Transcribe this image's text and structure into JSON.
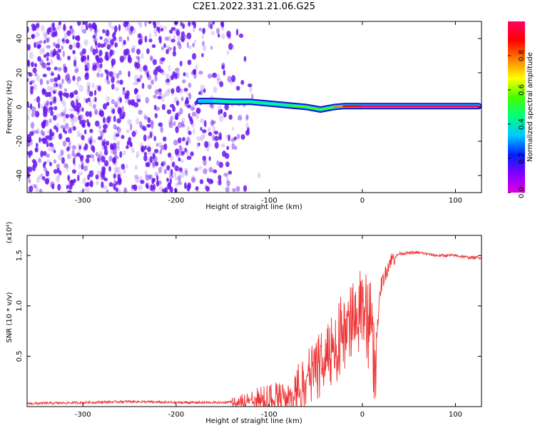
{
  "title": "C2E1.2022.331.21.06.G25",
  "colors": {
    "snr_line": "#ee3333",
    "noise_purple": "#6a16f0",
    "colormap": [
      "#e000e0",
      "#8000ff",
      "#0020ff",
      "#00c8ff",
      "#00ff80",
      "#40ff00",
      "#ffff00",
      "#ff8000",
      "#ff0000",
      "#ff0060"
    ]
  },
  "chart_data": [
    {
      "type": "heatmap",
      "xlabel": "Height of straight line (km)",
      "ylabel": "Frequency (Hz)",
      "xlim": [
        -360,
        128
      ],
      "ylim": [
        -50,
        50
      ],
      "xticks": [
        -300,
        -200,
        -100,
        0,
        100
      ],
      "yticks": [
        -40,
        -20,
        0,
        20,
        40
      ],
      "colorbar": {
        "label": "Normalized spectral amplitude",
        "range": [
          0,
          1
        ],
        "ticks": [
          0.0,
          0.2,
          0.4,
          0.6,
          0.8
        ],
        "tick_labels": [
          "0.0",
          "0.2",
          "0.4",
          "0.6",
          "0.8"
        ]
      },
      "features": {
        "noise_region_x": [
          -360,
          -130
        ],
        "carrier_track": [
          {
            "x": -175,
            "y": 3.5,
            "amp": 0.35
          },
          {
            "x": -160,
            "y": 3.5,
            "amp": 0.4
          },
          {
            "x": -140,
            "y": 3.0,
            "amp": 0.4
          },
          {
            "x": -120,
            "y": 3.0,
            "amp": 0.45
          },
          {
            "x": -100,
            "y": 2.0,
            "amp": 0.45
          },
          {
            "x": -80,
            "y": 1.0,
            "amp": 0.5
          },
          {
            "x": -60,
            "y": 0.0,
            "amp": 0.5
          },
          {
            "x": -45,
            "y": -1.5,
            "amp": 0.5
          },
          {
            "x": -30,
            "y": 0.0,
            "amp": 0.65
          },
          {
            "x": -20,
            "y": 0.5,
            "amp": 0.8
          },
          {
            "x": 0,
            "y": 0.5,
            "amp": 0.95
          },
          {
            "x": 60,
            "y": 0.5,
            "amp": 0.95
          },
          {
            "x": 125,
            "y": 0.5,
            "amp": 0.95
          }
        ]
      }
    },
    {
      "type": "line",
      "xlabel": "Height of straight line (km)",
      "ylabel": "SNR (10 * v/v)",
      "y_multiplier": "(x10⁴)",
      "xlim": [
        -360,
        128
      ],
      "ylim": [
        0,
        1.7
      ],
      "xticks": [
        -300,
        -200,
        -100,
        0,
        100
      ],
      "yticks": [
        0.5,
        1.0,
        1.5
      ],
      "ytick_labels": [
        "0.5",
        "1.0",
        "1.5"
      ],
      "series": [
        {
          "x": [
            -360,
            -300,
            -250,
            -200,
            -150,
            -130,
            -120,
            -110,
            -100,
            -90,
            -80,
            -70,
            -60,
            -50,
            -40,
            -30,
            -25,
            -20,
            -15,
            -10,
            -5,
            0,
            5,
            10,
            13,
            20,
            30,
            40,
            60,
            80,
            100,
            115,
            125,
            128
          ],
          "y": [
            0.03,
            0.04,
            0.05,
            0.04,
            0.04,
            0.06,
            0.09,
            0.09,
            0.1,
            0.13,
            0.17,
            0.22,
            0.33,
            0.45,
            0.55,
            0.65,
            0.75,
            0.85,
            0.95,
            1.0,
            1.05,
            1.05,
            0.95,
            0.95,
            0.5,
            1.2,
            1.45,
            1.52,
            1.53,
            1.5,
            1.5,
            1.48,
            1.48,
            1.48
          ]
        }
      ]
    }
  ]
}
